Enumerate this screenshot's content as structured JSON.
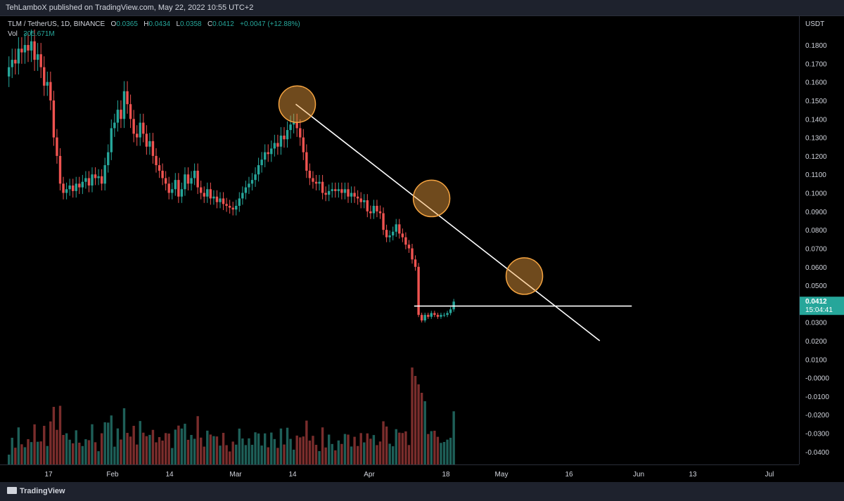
{
  "header": {
    "published": "TehLamboX published on TradingView.com, May 22, 2022 10:55 UTC+2"
  },
  "legend": {
    "symbol": "TLM / TetherUS, 1D, BINANCE",
    "o_label": "O",
    "o_value": "0.0365",
    "h_label": "H",
    "h_value": "0.0434",
    "l_label": "L",
    "l_value": "0.0358",
    "c_label": "C",
    "c_value": "0.0412",
    "change": "+0.0047 (+12.88%)",
    "vol_label": "Vol",
    "vol_value": "305.671M"
  },
  "price_scale": {
    "unit": "USDT",
    "last_price": "0.0412",
    "countdown": "15:04:41"
  },
  "footer": {
    "brand": "TradingView"
  },
  "colors": {
    "up": "#26a69a",
    "down": "#ef5350",
    "vol_up": "#1e5f58",
    "vol_down": "#7a2d2c",
    "circle": "#f7a541",
    "line": "#ffffff",
    "background": "#000000"
  },
  "chart_data": {
    "type": "candlestick",
    "symbol": "TLM / TetherUS",
    "interval": "1D",
    "y_axis_labels": [
      "0.1800",
      "0.1700",
      "0.1600",
      "0.1500",
      "0.1400",
      "0.1300",
      "0.1200",
      "0.1100",
      "0.1000",
      "0.0900",
      "0.0800",
      "0.0700",
      "0.0600",
      "0.0500",
      "0.0400",
      "0.0300",
      "0.0200",
      "0.0100",
      "-0.0000",
      "-0.0100",
      "-0.0200",
      "-0.0300",
      "-0.0400"
    ],
    "ylim": [
      -0.045,
      0.188
    ],
    "x_tick_labels": [
      "17",
      "Feb",
      "14",
      "Mar",
      "14",
      "Apr",
      "18",
      "May",
      "16",
      "Jun",
      "13",
      "Jul"
    ],
    "close_series": [
      0.168,
      0.172,
      0.17,
      0.178,
      0.176,
      0.18,
      0.177,
      0.182,
      0.172,
      0.175,
      0.168,
      0.158,
      0.16,
      0.15,
      0.13,
      0.12,
      0.105,
      0.1,
      0.102,
      0.104,
      0.101,
      0.105,
      0.103,
      0.106,
      0.108,
      0.104,
      0.11,
      0.108,
      0.109,
      0.105,
      0.115,
      0.122,
      0.135,
      0.138,
      0.145,
      0.14,
      0.155,
      0.148,
      0.14,
      0.132,
      0.13,
      0.138,
      0.132,
      0.125,
      0.128,
      0.12,
      0.115,
      0.112,
      0.108,
      0.105,
      0.1,
      0.102,
      0.107,
      0.098,
      0.102,
      0.11,
      0.105,
      0.108,
      0.112,
      0.103,
      0.1,
      0.098,
      0.102,
      0.097,
      0.098,
      0.095,
      0.097,
      0.094,
      0.093,
      0.092,
      0.091,
      0.093,
      0.097,
      0.1,
      0.103,
      0.105,
      0.107,
      0.11,
      0.115,
      0.118,
      0.122,
      0.121,
      0.124,
      0.127,
      0.125,
      0.131,
      0.129,
      0.134,
      0.137,
      0.138,
      0.135,
      0.13,
      0.122,
      0.112,
      0.108,
      0.106,
      0.105,
      0.106,
      0.1,
      0.099,
      0.101,
      0.102,
      0.101,
      0.102,
      0.1,
      0.102,
      0.098,
      0.1,
      0.098,
      0.097,
      0.095,
      0.096,
      0.09,
      0.089,
      0.093,
      0.09,
      0.089,
      0.08,
      0.076,
      0.077,
      0.079,
      0.083,
      0.078,
      0.076,
      0.072,
      0.07,
      0.064,
      0.06,
      0.034,
      0.031,
      0.034,
      0.033,
      0.035,
      0.034,
      0.033,
      0.034,
      0.034,
      0.035,
      0.037,
      0.0412
    ],
    "annotations": {
      "trendline": {
        "from_index": 90,
        "from_value": 0.148,
        "to_index": 185,
        "to_value": 0.02
      },
      "support_line": {
        "from_index": 127,
        "to_index": 195,
        "value": 0.0388
      },
      "circles_at": [
        {
          "index": 90,
          "value": 0.148
        },
        {
          "index": 132,
          "value": 0.097
        },
        {
          "index": 161,
          "value": 0.055
        }
      ]
    },
    "volume_note": "volume histogram at bottom"
  }
}
